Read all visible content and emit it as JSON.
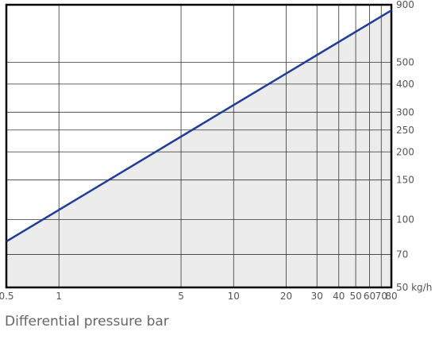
{
  "chart_data": {
    "type": "line",
    "x_label": "Differential pressure bar",
    "x_log": true,
    "y_log": true,
    "grid": true,
    "fill_below": true,
    "series": [
      {
        "x": [
          0.5,
          80
        ],
        "values": [
          80,
          850
        ],
        "color": "#1f3d99",
        "fill": "#ececec"
      }
    ],
    "xlim": [
      0.5,
      80
    ],
    "xticks": [
      0.5,
      1,
      5,
      10,
      20,
      30,
      40,
      50,
      60,
      70,
      80
    ],
    "ylim": [
      50,
      900
    ],
    "yticks": [
      {
        "value": 50,
        "label": "50 kg/h"
      },
      70,
      100,
      150,
      200,
      250,
      300,
      400,
      500,
      900
    ]
  }
}
